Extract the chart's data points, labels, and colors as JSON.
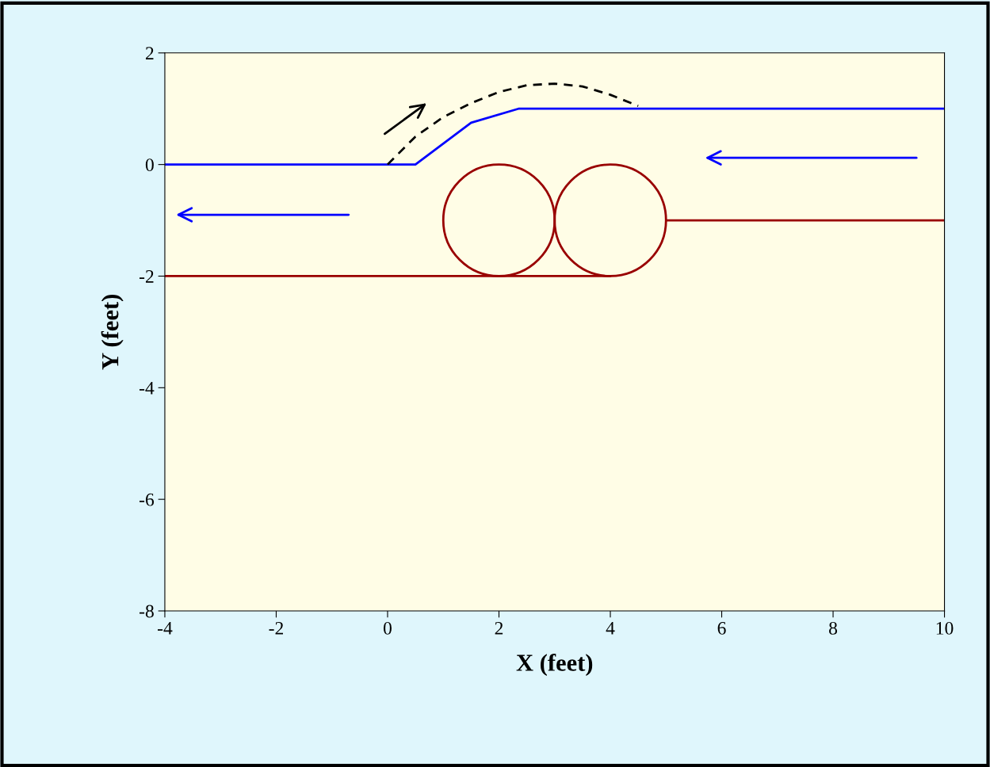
{
  "chart_data": {
    "type": "line",
    "xlabel": "X (feet)",
    "ylabel": "Y (feet)",
    "xlim": [
      -4,
      10
    ],
    "ylim": [
      -8,
      2
    ],
    "xticks": [
      -4,
      -2,
      0,
      2,
      4,
      6,
      8,
      10
    ],
    "yticks": [
      -8,
      -6,
      -4,
      -2,
      0,
      2
    ],
    "grid": false,
    "legend": false,
    "marker": "none",
    "series": [
      {
        "color": "#0000ff",
        "x": [
          -4,
          0.5,
          1.5,
          2.35,
          10
        ],
        "values": [
          0,
          0,
          0.75,
          1,
          1
        ]
      },
      {
        "color": "#990000",
        "x": [
          -4,
          4
        ],
        "values": [
          -2,
          -2
        ]
      },
      {
        "color": "#990000",
        "x": [
          5,
          10
        ],
        "values": [
          -1,
          -1
        ]
      },
      {
        "color": "#000000",
        "line_style": "dashed",
        "x": [
          0,
          0.5,
          1,
          1.5,
          2,
          2.5,
          3,
          3.5,
          4,
          4.5
        ],
        "values": [
          0,
          0.5,
          0.85,
          1.1,
          1.3,
          1.42,
          1.45,
          1.4,
          1.25,
          1.05
        ]
      }
    ]
  }
}
